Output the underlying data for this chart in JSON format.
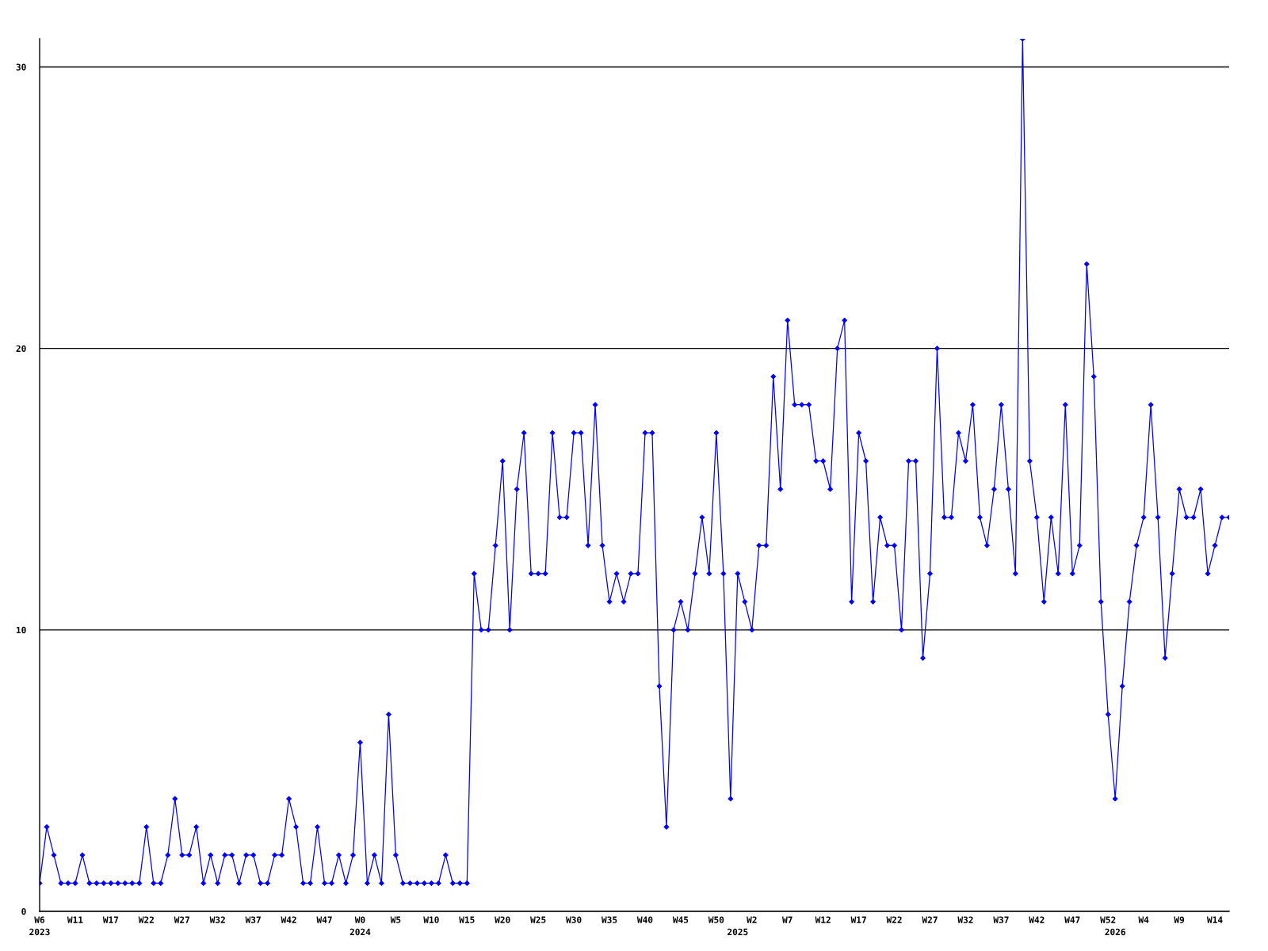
{
  "chart_data": {
    "type": "line",
    "categories": [
      "W6\n2023",
      null,
      null,
      null,
      null,
      "W11",
      null,
      null,
      null,
      null,
      "W17",
      null,
      null,
      null,
      null,
      "W22",
      null,
      null,
      null,
      null,
      "W27",
      null,
      null,
      null,
      null,
      "W32",
      null,
      null,
      null,
      null,
      "W37",
      null,
      null,
      null,
      null,
      "W42",
      null,
      null,
      null,
      null,
      "W47",
      null,
      null,
      null,
      null,
      "W0\n2024",
      null,
      null,
      null,
      null,
      "W5",
      null,
      null,
      null,
      null,
      "W10",
      null,
      null,
      null,
      null,
      "W15",
      null,
      null,
      null,
      null,
      "W20",
      null,
      null,
      null,
      null,
      "W25",
      null,
      null,
      null,
      null,
      "W30",
      null,
      null,
      null,
      null,
      "W35",
      null,
      null,
      null,
      null,
      "W40",
      null,
      null,
      null,
      null,
      "W45",
      null,
      null,
      null,
      null,
      "W50",
      null,
      null,
      "\n2025",
      null,
      "W2",
      null,
      null,
      null,
      null,
      "W7",
      null,
      null,
      null,
      null,
      "W12",
      null,
      null,
      null,
      null,
      "W17",
      null,
      null,
      null,
      null,
      "W22",
      null,
      null,
      null,
      null,
      "W27",
      null,
      null,
      null,
      null,
      "W32",
      null,
      null,
      null,
      null,
      "W37",
      null,
      null,
      null,
      null,
      "W42",
      null,
      null,
      null,
      null,
      "W47",
      null,
      null,
      null,
      null,
      "W52",
      "\n2026",
      null,
      null,
      null,
      "W4",
      null,
      null,
      null,
      null,
      "W9",
      null,
      null,
      null,
      null,
      "W14",
      null,
      null
    ],
    "series": [
      {
        "color": "#0000ff",
        "values": [
          1,
          3,
          2,
          1,
          1,
          1,
          2,
          1,
          1,
          1,
          1,
          1,
          1,
          1,
          1,
          3,
          1,
          1,
          2,
          4,
          2,
          2,
          3,
          1,
          2,
          1,
          2,
          2,
          1,
          2,
          2,
          1,
          1,
          2,
          2,
          4,
          3,
          1,
          1,
          3,
          1,
          1,
          2,
          1,
          2,
          6,
          1,
          2,
          1,
          7,
          2,
          1,
          1,
          1,
          1,
          1,
          1,
          2,
          1,
          1,
          1,
          12,
          10,
          10,
          13,
          16,
          10,
          15,
          17,
          12,
          12,
          12,
          17,
          14,
          14,
          17,
          17,
          13,
          18,
          13,
          11,
          12,
          11,
          12,
          12,
          17,
          17,
          8,
          3,
          10,
          11,
          10,
          12,
          14,
          12,
          17,
          12,
          4,
          12,
          11,
          10,
          13,
          13,
          19,
          15,
          21,
          18,
          18,
          18,
          16,
          16,
          15,
          20,
          21,
          11,
          17,
          16,
          11,
          14,
          13,
          13,
          10,
          16,
          16,
          9,
          12,
          20,
          14,
          14,
          17,
          16,
          18,
          14,
          13,
          15,
          18,
          15,
          12,
          31,
          16,
          14,
          11,
          14,
          12,
          18,
          12,
          13,
          23,
          19,
          11,
          7,
          4,
          8,
          11,
          13,
          14,
          18,
          14,
          9,
          12,
          15,
          14,
          14,
          15,
          12,
          13,
          14,
          14
        ]
      }
    ],
    "ylim": [
      0,
      31
    ],
    "yticks": [
      0,
      10,
      20,
      30
    ],
    "grid": "y",
    "marker": "diamond",
    "line_style": "solid"
  }
}
